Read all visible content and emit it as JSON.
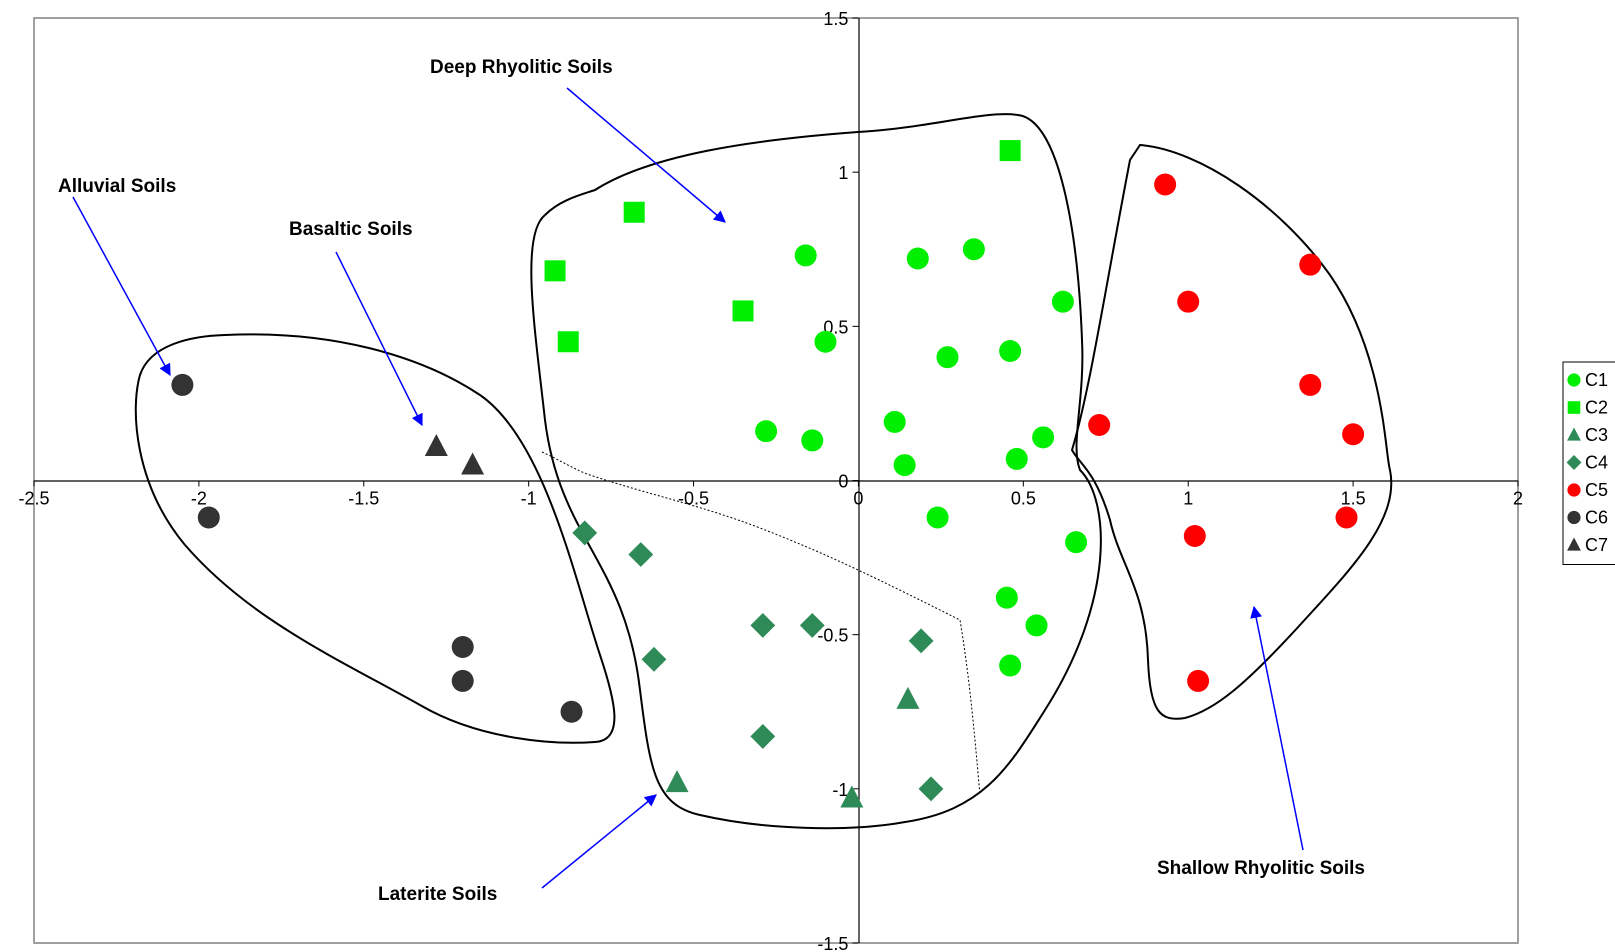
{
  "chart_data": {
    "type": "scatter",
    "title": "",
    "xlabel": "",
    "ylabel": "",
    "xlim": [
      -2.5,
      2
    ],
    "ylim": [
      -1.5,
      1.5
    ],
    "x_ticks": [
      "-2.5",
      "-2",
      "-1.5",
      "-1",
      "-0.5",
      "0",
      "0.5",
      "1",
      "1.5",
      "2"
    ],
    "y_ticks": [
      "-1.5",
      "-1",
      "-0.5",
      "0",
      "0.5",
      "1",
      "1.5"
    ],
    "grid": false,
    "legend_position": "right",
    "series": [
      {
        "name": "C1",
        "marker": "circle",
        "color": "#00ee00",
        "points": [
          [
            -0.16,
            0.73
          ],
          [
            0.18,
            0.72
          ],
          [
            0.35,
            0.75
          ],
          [
            0.62,
            0.58
          ],
          [
            -0.1,
            0.45
          ],
          [
            0.27,
            0.4
          ],
          [
            0.46,
            0.42
          ],
          [
            -0.28,
            0.16
          ],
          [
            -0.14,
            0.13
          ],
          [
            0.11,
            0.19
          ],
          [
            0.14,
            0.05
          ],
          [
            0.48,
            0.07
          ],
          [
            0.56,
            0.14
          ],
          [
            0.24,
            -0.12
          ],
          [
            0.66,
            -0.2
          ],
          [
            0.45,
            -0.38
          ],
          [
            0.54,
            -0.47
          ],
          [
            0.46,
            -0.6
          ]
        ]
      },
      {
        "name": "C2",
        "marker": "square",
        "color": "#00ee00",
        "points": [
          [
            0.46,
            1.07
          ],
          [
            -0.68,
            0.87
          ],
          [
            -0.92,
            0.68
          ],
          [
            -0.35,
            0.55
          ],
          [
            -0.88,
            0.45
          ]
        ]
      },
      {
        "name": "C3",
        "marker": "triangle",
        "color": "#2e8b57",
        "points": [
          [
            0.15,
            -0.71
          ],
          [
            -0.55,
            -0.98
          ],
          [
            -0.02,
            -1.03
          ]
        ]
      },
      {
        "name": "C4",
        "marker": "diamond",
        "color": "#2e8b57",
        "points": [
          [
            -0.83,
            -0.17
          ],
          [
            -0.66,
            -0.24
          ],
          [
            -0.29,
            -0.47
          ],
          [
            -0.14,
            -0.47
          ],
          [
            -0.62,
            -0.58
          ],
          [
            0.19,
            -0.52
          ],
          [
            -0.29,
            -0.83
          ],
          [
            0.22,
            -1.0
          ]
        ]
      },
      {
        "name": "C5",
        "marker": "circle",
        "color": "#ff0000",
        "points": [
          [
            0.93,
            0.96
          ],
          [
            1.37,
            0.7
          ],
          [
            1.0,
            0.58
          ],
          [
            1.37,
            0.31
          ],
          [
            0.73,
            0.18
          ],
          [
            1.5,
            0.15
          ],
          [
            1.02,
            -0.18
          ],
          [
            1.48,
            -0.12
          ],
          [
            1.03,
            -0.65
          ]
        ]
      },
      {
        "name": "C6",
        "marker": "circle",
        "color": "#333333",
        "points": [
          [
            -2.05,
            0.31
          ],
          [
            -1.97,
            -0.12
          ],
          [
            -1.2,
            -0.54
          ],
          [
            -1.2,
            -0.65
          ],
          [
            -0.87,
            -0.75
          ]
        ]
      },
      {
        "name": "C7",
        "marker": "triangle",
        "color": "#333333",
        "points": [
          [
            -1.28,
            0.11
          ],
          [
            -1.17,
            0.05
          ]
        ]
      }
    ],
    "annotations": [
      {
        "text": "Deep Rhyolitic Soils"
      },
      {
        "text": "Alluvial Soils"
      },
      {
        "text": "Basaltic Soils"
      },
      {
        "text": "Laterite Soils"
      },
      {
        "text": "Shallow Rhyolitic Soils"
      }
    ]
  }
}
